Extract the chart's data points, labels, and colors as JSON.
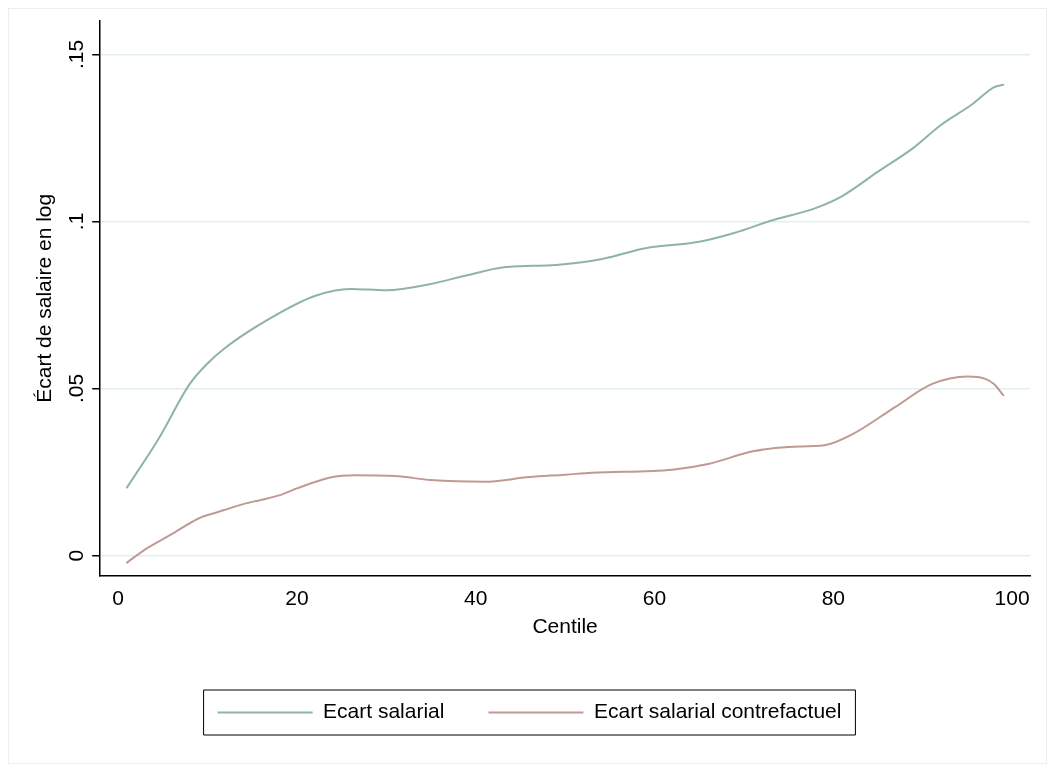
{
  "chart_data": {
    "type": "line",
    "xlabel": "Centile",
    "ylabel": "Écart de salaire en log",
    "xlim": [
      -2,
      102
    ],
    "xticks": [
      0,
      20,
      40,
      60,
      80,
      100
    ],
    "ylim": [
      -0.006,
      0.16
    ],
    "yticks": [
      {
        "value": 0,
        "label": "0"
      },
      {
        "value": 0.05,
        "label": ".05"
      },
      {
        "value": 0.1,
        "label": ".1"
      },
      {
        "value": 0.15,
        "label": ".15"
      }
    ],
    "grid": "y",
    "legend": "bottom",
    "marker": "none",
    "line_style": "solid",
    "series": [
      {
        "name": "Ecart salarial",
        "color": "#8fb3a8",
        "x": [
          1,
          4.5,
          8,
          10,
          12,
          17,
          22,
          26,
          30,
          35,
          39,
          43,
          49,
          54,
          59,
          65,
          69,
          73,
          78,
          81,
          85,
          89,
          92,
          95.5,
          98,
          99
        ],
        "values": [
          0.0204,
          0.0348,
          0.0513,
          0.0575,
          0.0622,
          0.071,
          0.0777,
          0.0798,
          0.0794,
          0.0813,
          0.0839,
          0.0862,
          0.087,
          0.0887,
          0.092,
          0.0939,
          0.0966,
          0.1002,
          0.104,
          0.1076,
          0.1149,
          0.1221,
          0.1288,
          0.135,
          0.1402,
          0.1409
        ]
      },
      {
        "name": "Ecart salarial contrefactuel",
        "color": "#bf9a94",
        "x": [
          1,
          3,
          6,
          9,
          11,
          14,
          18,
          20,
          24,
          26.5,
          31,
          35,
          41,
          46,
          50,
          53,
          62,
          66,
          71,
          75,
          79,
          82,
          87,
          91,
          95,
          97,
          98,
          99
        ],
        "values": [
          -0.0021,
          0.0018,
          0.0064,
          0.0111,
          0.0129,
          0.0154,
          0.018,
          0.0201,
          0.0235,
          0.024,
          0.0238,
          0.0226,
          0.0221,
          0.0235,
          0.0242,
          0.0248,
          0.0257,
          0.0274,
          0.0312,
          0.0325,
          0.033,
          0.0361,
          0.0446,
          0.0513,
          0.0536,
          0.0529,
          0.0513,
          0.048
        ]
      }
    ]
  }
}
